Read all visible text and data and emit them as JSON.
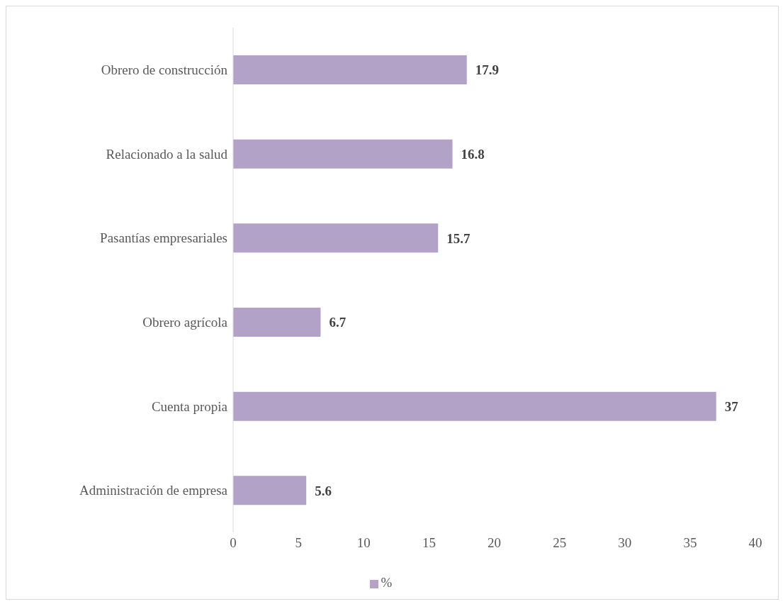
{
  "chart_data": {
    "type": "bar",
    "orientation": "horizontal",
    "categories": [
      "Obrero de construcción",
      "Relacionado a la salud",
      "Pasantías empresariales",
      "Obrero agrícola",
      "Cuenta propia",
      "Administración de empresa"
    ],
    "series": [
      {
        "name": "%",
        "color": "#b3a2c7",
        "values": [
          17.9,
          16.8,
          15.7,
          6.7,
          37,
          5.6
        ]
      }
    ],
    "xlim": [
      0,
      40
    ],
    "xticks": [
      0,
      5,
      10,
      15,
      20,
      25,
      30,
      35,
      40
    ],
    "grid": false,
    "legend": "bottom",
    "data_labels": true
  }
}
